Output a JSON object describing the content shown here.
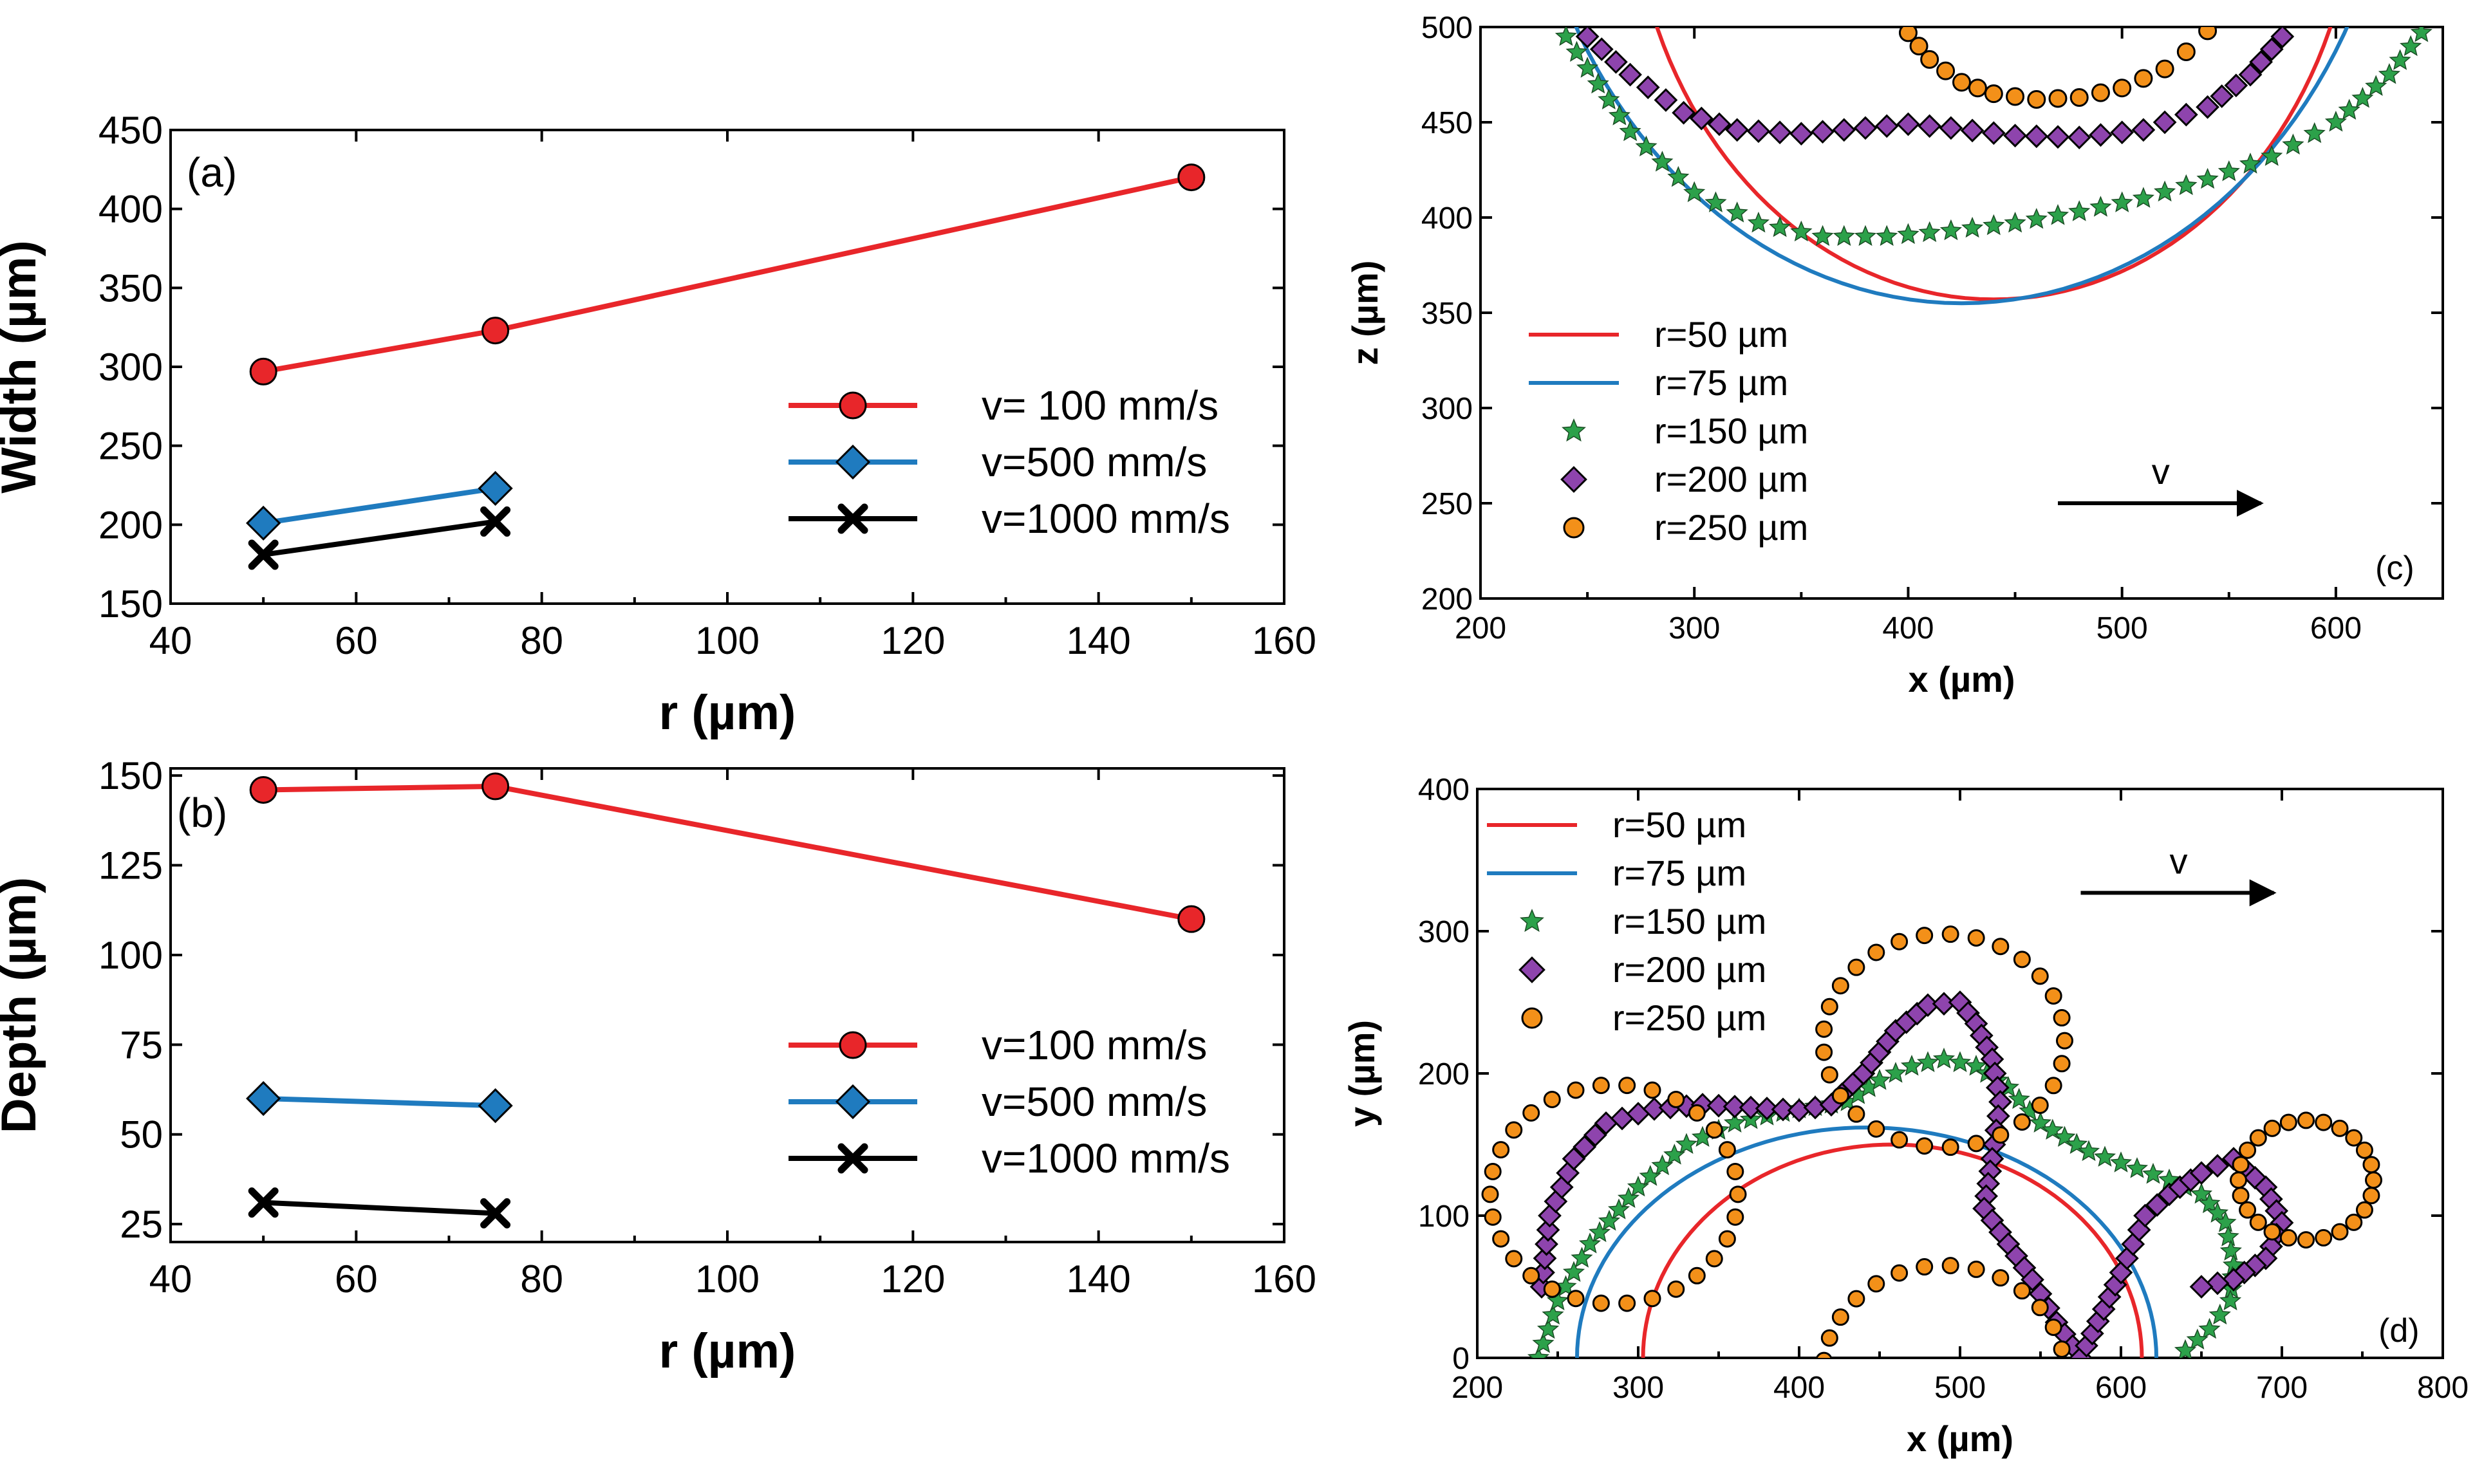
{
  "chart_data": [
    {
      "id": "a",
      "type": "line",
      "panel_label": "(a)",
      "title": "",
      "xlabel": "r (µm)",
      "ylabel": "Width (µm)",
      "xlim": [
        40,
        160
      ],
      "ylim": [
        150,
        450
      ],
      "xticks": [
        40,
        60,
        80,
        100,
        120,
        140,
        160
      ],
      "yticks": [
        150,
        200,
        250,
        300,
        350,
        400,
        450
      ],
      "legend_position": "center-right",
      "series": [
        {
          "name": "v= 100 mm/s",
          "color": "#e8262a",
          "marker": "circle",
          "x": [
            50,
            75,
            150
          ],
          "y": [
            297,
            323,
            420
          ]
        },
        {
          "name": "v=500 mm/s",
          "color": "#1f7bbf",
          "marker": "diamond",
          "x": [
            50,
            75
          ],
          "y": [
            201,
            223
          ]
        },
        {
          "name": "v=1000 mm/s",
          "color": "#000000",
          "marker": "x",
          "x": [
            50,
            75
          ],
          "y": [
            181,
            202
          ]
        }
      ]
    },
    {
      "id": "b",
      "type": "line",
      "panel_label": "(b)",
      "title": "",
      "xlabel": "r (µm)",
      "ylabel": "Depth (µm)",
      "xlim": [
        40,
        160
      ],
      "ylim": [
        20,
        152
      ],
      "xticks": [
        40,
        60,
        80,
        100,
        120,
        140,
        160
      ],
      "yticks": [
        25,
        50,
        75,
        100,
        125,
        150
      ],
      "legend_position": "center-right",
      "series": [
        {
          "name": "v=100 mm/s",
          "color": "#e8262a",
          "marker": "circle",
          "x": [
            50,
            75,
            150
          ],
          "y": [
            146,
            147,
            110
          ]
        },
        {
          "name": "v=500 mm/s",
          "color": "#1f7bbf",
          "marker": "diamond",
          "x": [
            50,
            75
          ],
          "y": [
            60,
            58
          ]
        },
        {
          "name": "v=1000 mm/s",
          "color": "#000000",
          "marker": "x",
          "x": [
            50,
            75
          ],
          "y": [
            31,
            28
          ]
        }
      ]
    },
    {
      "id": "c",
      "type": "scatter",
      "panel_label": "(c)",
      "title": "",
      "xlabel": "x (µm)",
      "ylabel": "z (µm)",
      "xlim": [
        200,
        650
      ],
      "ylim": [
        200,
        500
      ],
      "xticks": [
        200,
        300,
        400,
        500,
        600
      ],
      "yticks": [
        200,
        250,
        300,
        350,
        400,
        450,
        500
      ],
      "legend_position": "bottom-left",
      "annotation": {
        "text": "v",
        "arrow_from": [
          470,
          250
        ],
        "arrow_to": [
          565,
          250
        ]
      },
      "series": [
        {
          "name": "r=50 µm",
          "color": "#e8262a",
          "style": "line",
          "shape": "ellipse-arc",
          "cx": 440,
          "half_width": 170,
          "bottom_y": 357
        },
        {
          "name": "r=75 µm",
          "color": "#1f7bbf",
          "style": "line",
          "shape": "ellipse-arc",
          "cx": 425,
          "half_width": 205,
          "bottom_y": 355
        },
        {
          "name": "r=150 µm",
          "color": "#2ca14a",
          "style": "marker",
          "marker": "star",
          "x": [
            240,
            270,
            300,
            330,
            360,
            390,
            420,
            450,
            480,
            510,
            540,
            570,
            600,
            625,
            640
          ],
          "y": [
            495,
            445,
            413,
            397,
            390,
            390,
            393,
            397,
            403,
            410,
            420,
            432,
            450,
            475,
            497
          ]
        },
        {
          "name": "r=200 µm",
          "color": "#8e44ad",
          "style": "marker",
          "marker": "diamond",
          "x": [
            250,
            270,
            295,
            320,
            350,
            380,
            400,
            420,
            450,
            480,
            510,
            540,
            560,
            575
          ],
          "y": [
            495,
            475,
            455,
            446,
            444,
            447,
            449,
            447,
            443,
            442,
            446,
            458,
            475,
            495
          ]
        },
        {
          "name": "r=250 µm",
          "color": "#f39019",
          "style": "marker",
          "marker": "circle",
          "x": [
            400,
            410,
            425,
            440,
            460,
            480,
            500,
            520,
            530,
            540
          ],
          "y": [
            497,
            483,
            471,
            465,
            462,
            463,
            468,
            478,
            487,
            498
          ]
        }
      ]
    },
    {
      "id": "d",
      "type": "scatter",
      "panel_label": "(d)",
      "title": "",
      "xlabel": "x (µm)",
      "ylabel": "y (µm)",
      "xlim": [
        200,
        800
      ],
      "ylim": [
        0,
        400
      ],
      "xticks": [
        200,
        300,
        400,
        500,
        600,
        700,
        800
      ],
      "yticks": [
        0,
        100,
        200,
        300,
        400
      ],
      "legend_position": "top-left",
      "annotation": {
        "text": "v",
        "arrow_from": [
          575,
          327
        ],
        "arrow_to": [
          695,
          327
        ]
      },
      "series": [
        {
          "name": "r=50 µm",
          "color": "#e8262a",
          "style": "line",
          "shape": "half-ellipse",
          "cx": 458,
          "half_width": 155,
          "height": 150
        },
        {
          "name": "r=75 µm",
          "color": "#1f7bbf",
          "style": "line",
          "shape": "half-ellipse",
          "cx": 442,
          "half_width": 180,
          "height": 162
        },
        {
          "name": "r=150 µm",
          "color": "#2ca14a",
          "style": "marker",
          "marker": "star",
          "x": [
            238,
            250,
            270,
            300,
            330,
            360,
            400,
            430,
            450,
            470,
            490,
            510,
            530,
            550,
            580,
            610,
            630,
            650,
            665,
            670,
            668,
            655,
            640
          ],
          "y": [
            0,
            40,
            80,
            120,
            150,
            165,
            175,
            180,
            195,
            205,
            210,
            205,
            190,
            165,
            145,
            133,
            125,
            115,
            95,
            65,
            40,
            20,
            5
          ]
        },
        {
          "name": "r=200 µm",
          "color": "#8e44ad",
          "style": "marker",
          "marker": "diamond",
          "x": [
            240,
            245,
            260,
            280,
            310,
            340,
            370,
            400,
            420,
            440,
            460,
            480,
            500,
            510,
            520,
            525,
            520,
            515,
            530,
            545,
            560,
            575,
            600,
            615,
            630,
            650,
            670,
            690,
            700,
            690,
            670,
            650
          ],
          "y": [
            50,
            100,
            140,
            165,
            175,
            178,
            176,
            174,
            178,
            200,
            230,
            248,
            250,
            235,
            210,
            180,
            140,
            105,
            80,
            55,
            25,
            0,
            60,
            100,
            115,
            130,
            140,
            120,
            95,
            70,
            55,
            50
          ]
        },
        {
          "name": "r=250 µm",
          "color": "#f39019",
          "style": "marker",
          "marker": "circle",
          "shape": "circles",
          "circles": [
            [
              285,
              115,
              77
            ],
            [
              490,
              223,
              75
            ],
            [
              715,
              125,
              42
            ],
            [
              490,
              -10,
              75
            ]
          ]
        }
      ]
    }
  ]
}
